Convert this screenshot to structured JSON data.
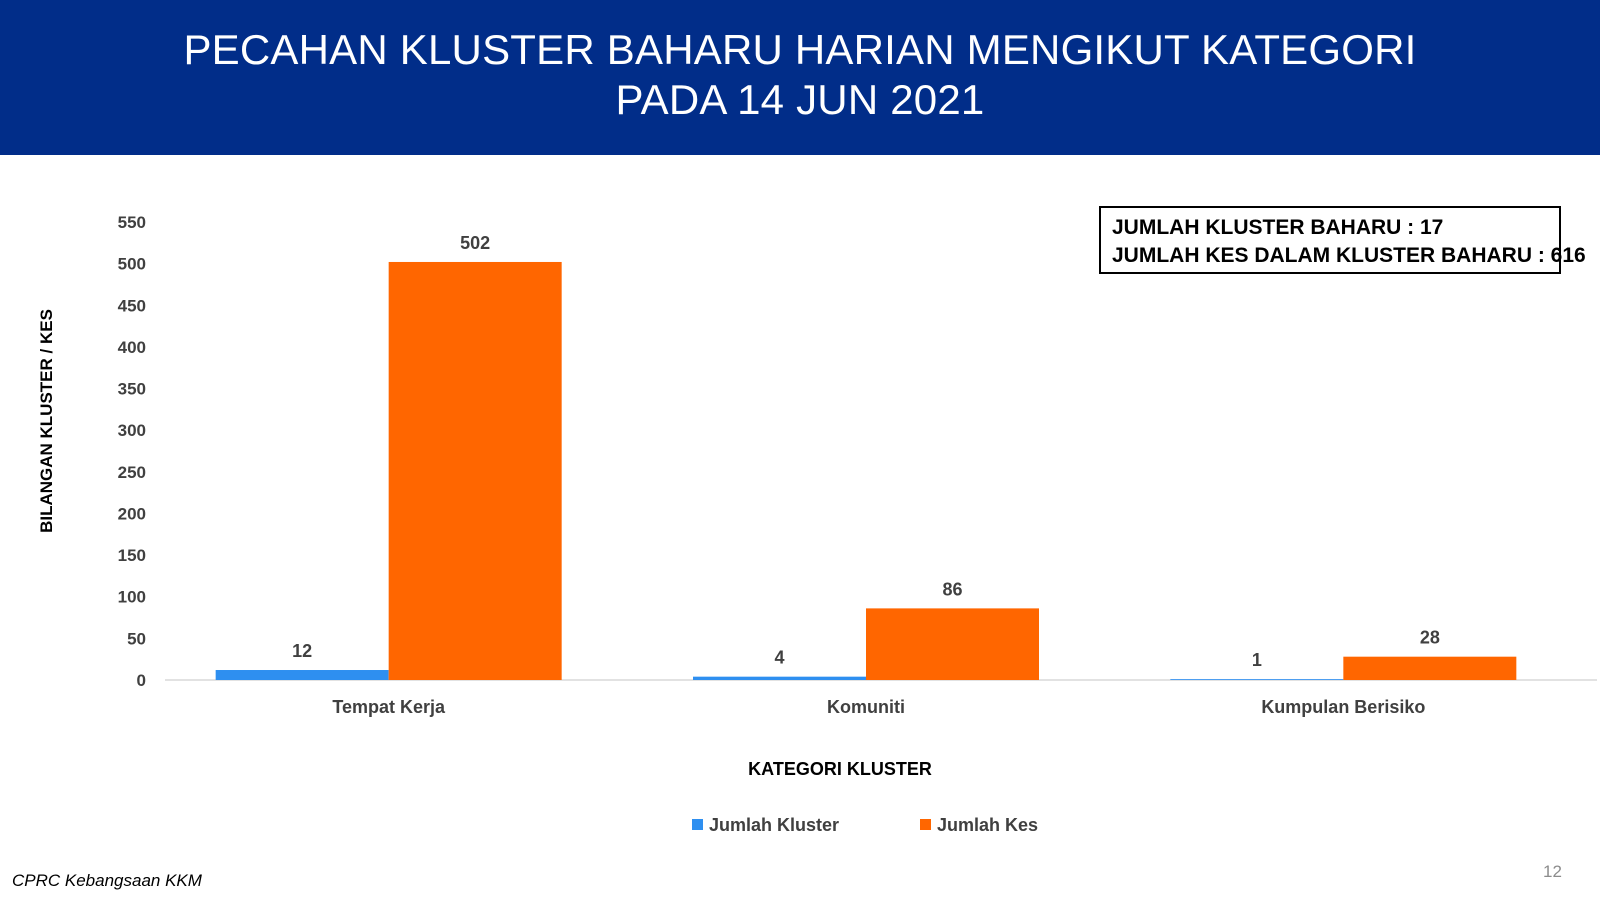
{
  "header": {
    "title_line1": "PECAHAN KLUSTER BAHARU HARIAN MENGIKUT KATEGORI",
    "title_line2": "PADA 14 JUN 2021"
  },
  "summary": {
    "line1": "JUMLAH KLUSTER BAHARU : 17",
    "line2": "JUMLAH KES DALAM KLUSTER BAHARU : 616"
  },
  "footer": {
    "source": "CPRC Kebangsaan KKM",
    "page_number": "12"
  },
  "chart_data": {
    "type": "bar",
    "title": "PECAHAN KLUSTER BAHARU HARIAN MENGIKUT KATEGORI PADA 14 JUN 2021",
    "xlabel": "KATEGORI KLUSTER",
    "ylabel": "BILANGAN KLUSTER / KES",
    "categories": [
      "Tempat Kerja",
      "Komuniti",
      "Kumpulan Berisiko"
    ],
    "series": [
      {
        "name": "Jumlah Kluster",
        "values": [
          12,
          4,
          1
        ],
        "color": "#2e8ff0"
      },
      {
        "name": "Jumlah Kes",
        "values": [
          502,
          86,
          28
        ],
        "color": "#ff6600"
      }
    ],
    "ylim": [
      0,
      550
    ],
    "yticks": [
      0,
      50,
      100,
      150,
      200,
      250,
      300,
      350,
      400,
      450,
      500,
      550
    ],
    "grid": false,
    "legend_position": "bottom"
  }
}
